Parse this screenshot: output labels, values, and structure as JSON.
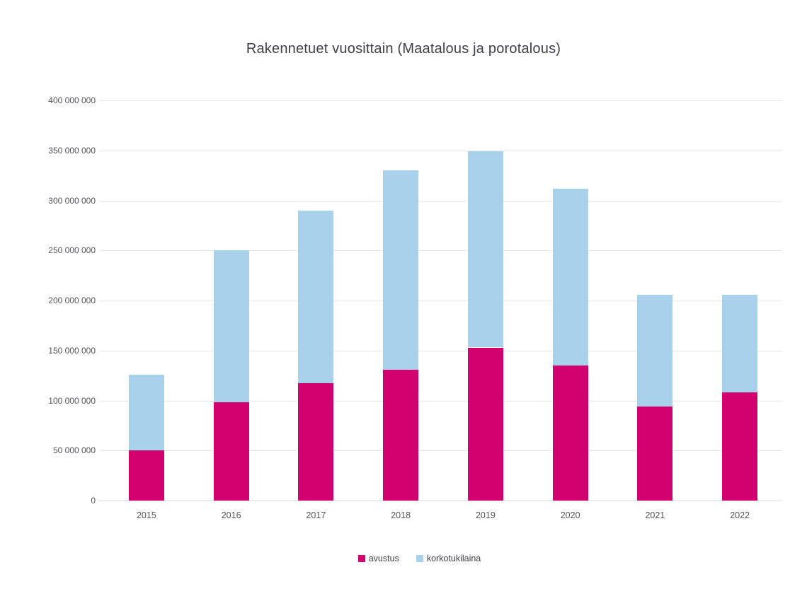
{
  "chart_data": {
    "type": "bar",
    "stacked": true,
    "title": "Rakennetuet vuosittain (Maatalous ja porotalous)",
    "categories": [
      "2015",
      "2016",
      "2017",
      "2018",
      "2019",
      "2020",
      "2021",
      "2022"
    ],
    "series": [
      {
        "name": "avustus",
        "color": "#D1006E",
        "values": [
          50000000,
          98000000,
          117000000,
          131000000,
          153000000,
          135000000,
          94000000,
          108000000
        ]
      },
      {
        "name": "korkotukilaina",
        "color": "#A8D2EC",
        "values": [
          76000000,
          152000000,
          173000000,
          199000000,
          196000000,
          177000000,
          112000000,
          98000000
        ]
      }
    ],
    "xlabel": "",
    "ylabel": "",
    "ylim": [
      0,
      400000000
    ],
    "yticks": [
      {
        "value": 400000000,
        "label": "400 000 000"
      },
      {
        "value": 350000000,
        "label": "350 000 000"
      },
      {
        "value": 300000000,
        "label": "300 000 000"
      },
      {
        "value": 250000000,
        "label": "250 000 000"
      },
      {
        "value": 200000000,
        "label": "200 000 000"
      },
      {
        "value": 150000000,
        "label": "150 000 000"
      },
      {
        "value": 100000000,
        "label": "100 000 000"
      },
      {
        "value": 50000000,
        "label": "50 000 000"
      },
      {
        "value": 0,
        "label": "0"
      }
    ],
    "grid": true,
    "legend_position": "bottom",
    "colors": {
      "gridline": "#E6E6EC",
      "axis_line": "#D6D6DC",
      "tick_text": "#54545C",
      "title_text": "#404048",
      "background": "#FFFFFF"
    }
  }
}
